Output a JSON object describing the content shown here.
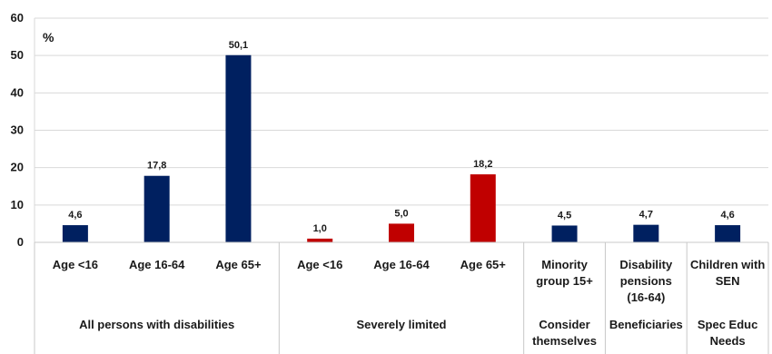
{
  "chart_data": {
    "type": "bar",
    "unit_label": "%",
    "ylim": [
      0,
      60
    ],
    "yticks": [
      0,
      10,
      20,
      30,
      40,
      50,
      60
    ],
    "grid": true,
    "legend": "none",
    "colors": {
      "all": "#002060",
      "severe": "#c00000"
    },
    "bars": [
      {
        "category": [
          "Age <16"
        ],
        "value": 4.6,
        "label": "4,6",
        "color_key": "all"
      },
      {
        "category": [
          "Age 16-64"
        ],
        "value": 17.8,
        "label": "17,8",
        "color_key": "all"
      },
      {
        "category": [
          "Age 65+"
        ],
        "value": 50.1,
        "label": "50,1",
        "color_key": "all"
      },
      {
        "category": [
          "Age <16"
        ],
        "value": 1.0,
        "label": "1,0",
        "color_key": "severe"
      },
      {
        "category": [
          "Age 16-64"
        ],
        "value": 5.0,
        "label": "5,0",
        "color_key": "severe"
      },
      {
        "category": [
          "Age 65+"
        ],
        "value": 18.2,
        "label": "18,2",
        "color_key": "severe"
      },
      {
        "category": [
          "Minority",
          "group 15+"
        ],
        "value": 4.5,
        "label": "4,5",
        "color_key": "all"
      },
      {
        "category": [
          "Disability",
          "pensions",
          "(16-64)"
        ],
        "value": 4.7,
        "label": "4,7",
        "color_key": "all"
      },
      {
        "category": [
          "Children with",
          "SEN"
        ],
        "value": 4.6,
        "label": "4,6",
        "color_key": "all"
      }
    ],
    "groups": [
      {
        "lines": [
          "All persons with disabilities"
        ],
        "span": 3
      },
      {
        "lines": [
          "Severely limited"
        ],
        "span": 3
      },
      {
        "lines": [
          "Consider",
          "themselves"
        ],
        "span": 1
      },
      {
        "lines": [
          "Beneficiaries"
        ],
        "span": 1
      },
      {
        "lines": [
          "Spec Educ",
          "Needs"
        ],
        "span": 1
      }
    ]
  }
}
